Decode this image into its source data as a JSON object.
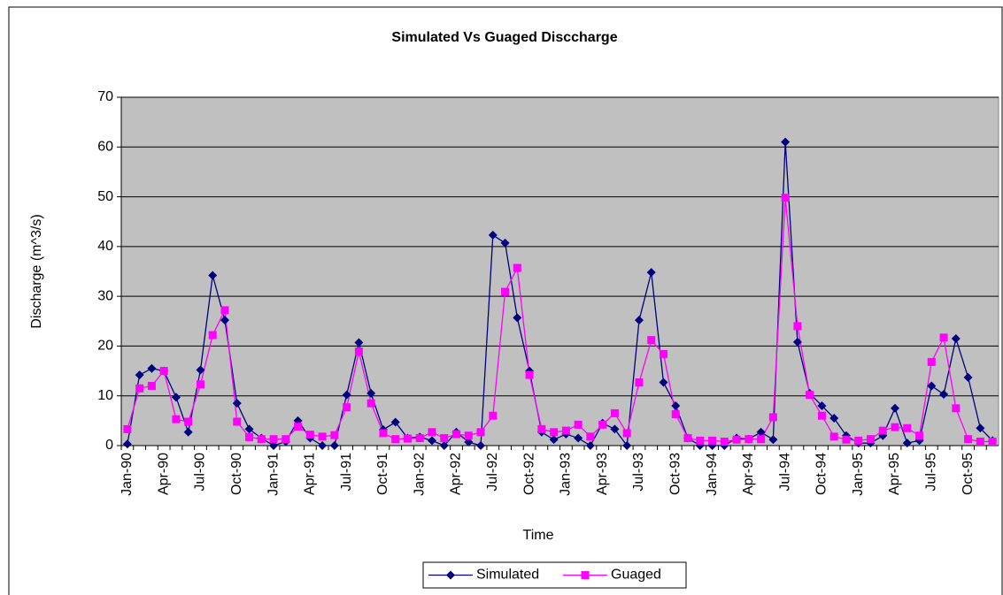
{
  "chart_data": {
    "type": "line",
    "title": "Simulated Vs Guaged Disccharge",
    "x_label": "Time",
    "y_label": "Discharge (m^3/s)",
    "categories": [
      "Jan-90",
      null,
      null,
      "Apr-90",
      null,
      null,
      "Jul-90",
      null,
      null,
      "Oct-90",
      null,
      null,
      "Jan-91",
      null,
      null,
      "Apr-91",
      null,
      null,
      "Jul-91",
      null,
      null,
      "Oct-91",
      null,
      null,
      "Jan-92",
      null,
      null,
      "Apr-92",
      null,
      null,
      "Jul-92",
      null,
      null,
      "Oct-92",
      null,
      null,
      "Jan-93",
      null,
      null,
      "Apr-93",
      null,
      null,
      "Jul-93",
      null,
      null,
      "Oct-93",
      null,
      null,
      "Jan-94",
      null,
      null,
      "Apr-94",
      null,
      null,
      "Jul-94",
      null,
      null,
      "Oct-94",
      null,
      null,
      "Jan-95",
      null,
      null,
      "Apr-95",
      null,
      null,
      "Jul-95",
      null,
      null,
      "Oct-95",
      null,
      null
    ],
    "series": [
      {
        "name": "Simulated",
        "color": "#000080",
        "marker": "diamond",
        "values": [
          0.3,
          14.2,
          15.5,
          15,
          9.7,
          2.7,
          15.2,
          34.2,
          25.2,
          8.5,
          3.3,
          1.5,
          0,
          0.8,
          5,
          1.5,
          0,
          0,
          10.2,
          20.7,
          10.5,
          3.2,
          4.7,
          1.5,
          1.7,
          1,
          0,
          2.7,
          0.7,
          0,
          42.3,
          40.7,
          25.7,
          15,
          2.7,
          1.2,
          2.3,
          1.5,
          0,
          4.5,
          3.3,
          0,
          25.2,
          34.8,
          12.7,
          8,
          1.5,
          0,
          0,
          0,
          1.5,
          1.3,
          2.7,
          1.2,
          61,
          20.8,
          10.5,
          8,
          5.5,
          2,
          0.5,
          0.5,
          2,
          7.5,
          0.5,
          1,
          12,
          10.3,
          21.5,
          13.7,
          3.5,
          1
        ]
      },
      {
        "name": "Guaged",
        "color": "#FF00FF",
        "marker": "square",
        "values": [
          3.3,
          11.5,
          12,
          15,
          5.3,
          4.8,
          12.3,
          22.2,
          27.2,
          4.8,
          1.7,
          1.3,
          1.3,
          1.3,
          3.8,
          2.2,
          1.8,
          2.1,
          7.7,
          18.9,
          8.5,
          2.5,
          1.3,
          1.4,
          1.5,
          2.7,
          1.5,
          2.3,
          2,
          2.7,
          6,
          30.9,
          35.7,
          14.2,
          3.3,
          2.7,
          3,
          4.2,
          1.8,
          4.2,
          6.5,
          2.5,
          12.7,
          21.2,
          18.4,
          6.3,
          1.5,
          1,
          1,
          0.8,
          1.2,
          1.3,
          1.3,
          5.7,
          49.8,
          24,
          10.2,
          6,
          1.8,
          1.2,
          1,
          1.3,
          3,
          3.7,
          3.5,
          2,
          16.8,
          21.7,
          7.5,
          1.3,
          0.8,
          0.8
        ]
      }
    ],
    "ylim": [
      0,
      70
    ],
    "yticks": [
      0,
      10,
      20,
      30,
      40,
      50,
      60,
      70
    ],
    "grid": true,
    "legend": "bottom",
    "plot_background": "#C0C0C0"
  }
}
